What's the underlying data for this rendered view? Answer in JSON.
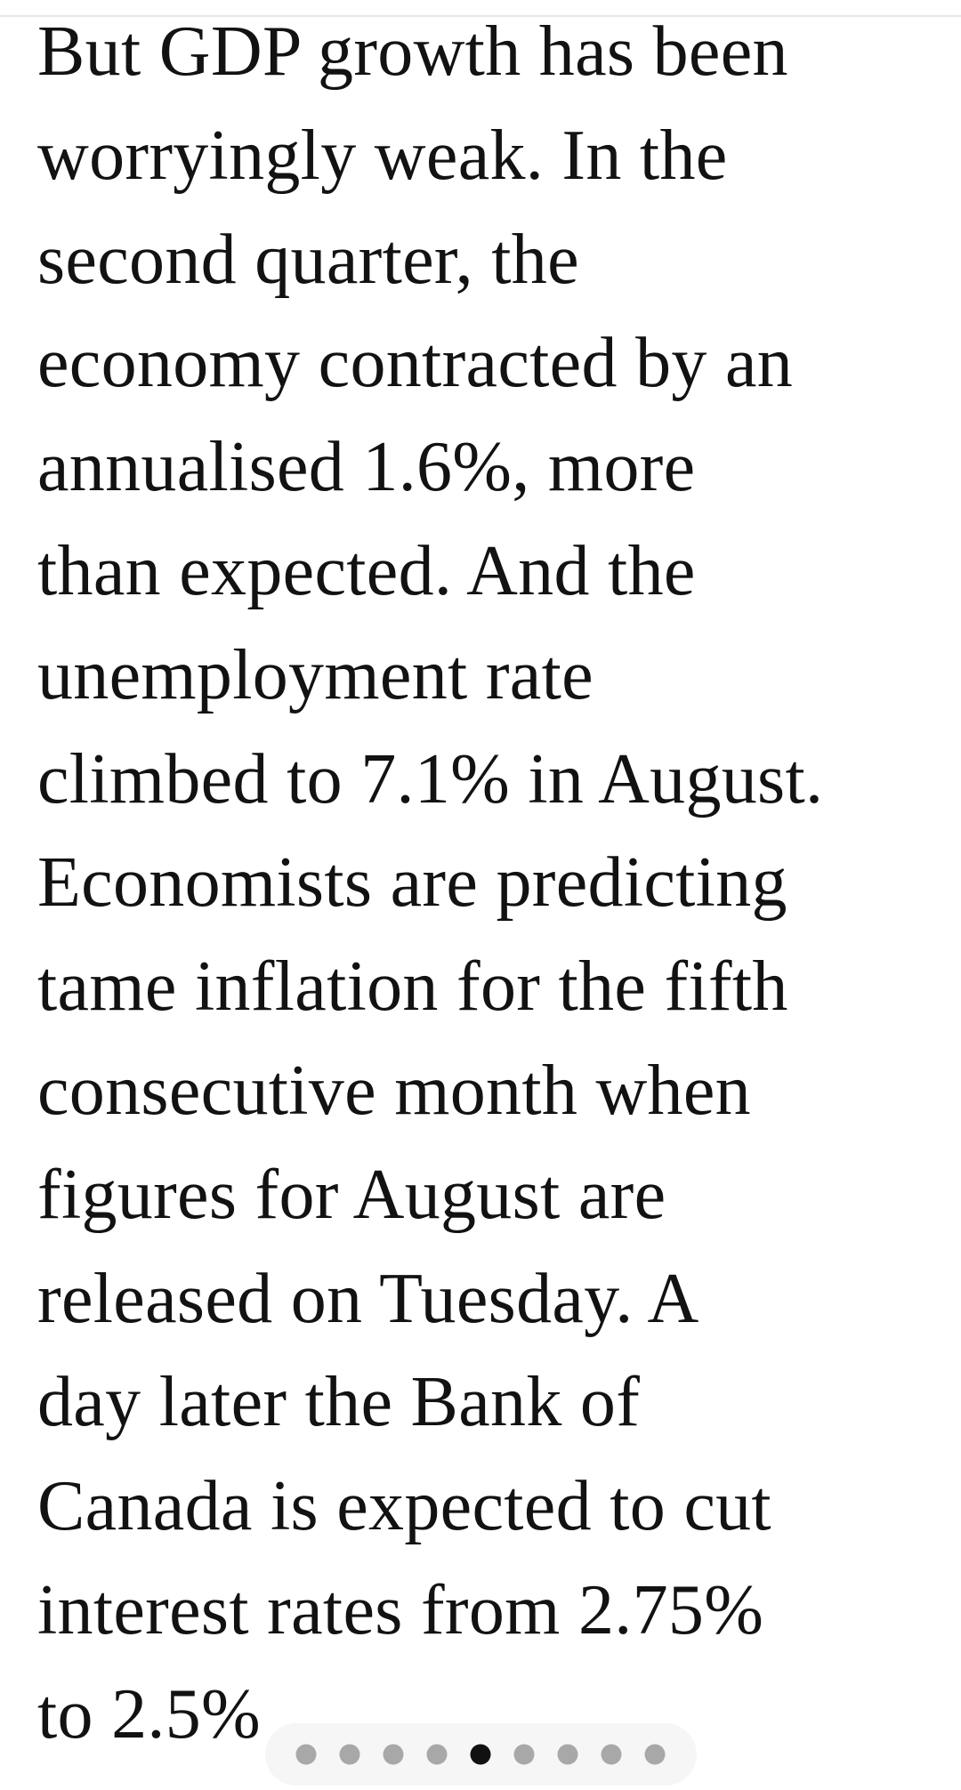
{
  "article": {
    "lines": [
      "But GDP growth has been",
      "worryingly weak. In the",
      "second quarter, the",
      "economy contracted by an",
      "annualised 1.6%, more",
      "than expected. And the",
      "unemployment rate",
      "climbed to 7.1% in August.",
      "Economists are predicting",
      "tame inflation for the fifth",
      "consecutive month when",
      "figures for August are",
      "released on Tuesday. A",
      "day later the Bank of",
      "Canada is expected to cut",
      "interest rates from 2.75%",
      "to 2.5%"
    ]
  }
}
